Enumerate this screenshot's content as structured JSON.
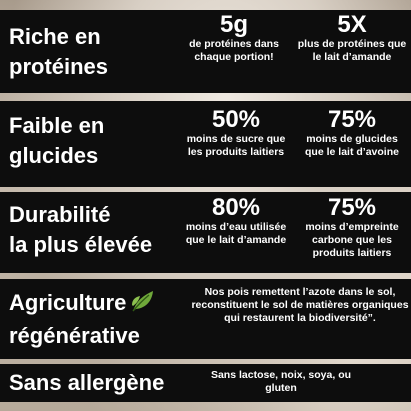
{
  "sections": [
    {
      "title_lines": [
        "Riche en",
        "protéines"
      ],
      "stats": [
        {
          "value": "5g",
          "desc": "de protéines dans chaque portion!"
        },
        {
          "value": "5X",
          "desc": "plus de protéines que le lait d’amande"
        }
      ]
    },
    {
      "title_lines": [
        "Faible en",
        "glucides"
      ],
      "stats": [
        {
          "value": "50%",
          "desc": "moins de sucre que les produits laitiers"
        },
        {
          "value": "75%",
          "desc": "moins de glucides que le lait d’avoine"
        }
      ]
    },
    {
      "title_lines": [
        "Durabilité",
        "la plus élevée"
      ],
      "stats": [
        {
          "value": "80%",
          "desc": "moins d’eau utilisée que le lait d’amande"
        },
        {
          "value": "75%",
          "desc": "moins d’empreinte carbone que les produits laitiers"
        }
      ]
    },
    {
      "title_lines": [
        "Agriculture",
        "régénérative"
      ],
      "icon": "leaf-icon",
      "note": "Nos pois remettent l’azote dans le sol, reconstituent le sol de matières organiques qui restaurent la biodiversité”."
    },
    {
      "title_lines": [
        "Sans allergène"
      ],
      "note": "Sans lactose, noix, soya, ou gluten"
    }
  ],
  "colors": {
    "panel": "#0d0d0d",
    "text": "#ffffff",
    "leaf": "#6fa83a"
  }
}
